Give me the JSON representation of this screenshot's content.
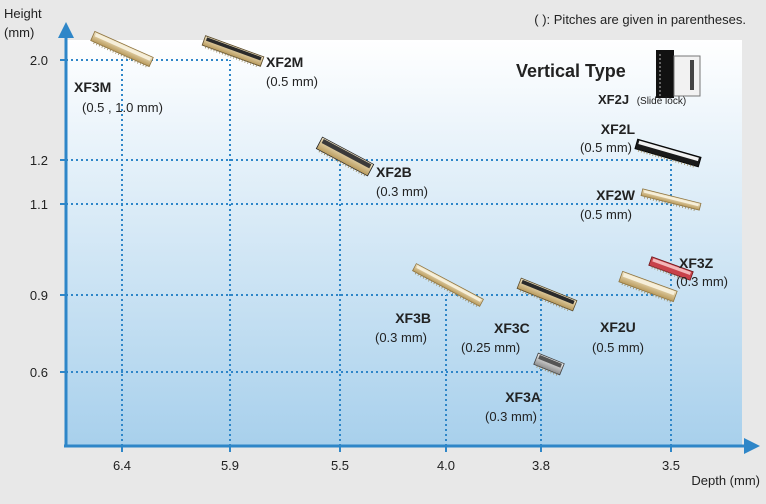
{
  "note": "( ): Pitches are given in parentheses.",
  "vertical_type": {
    "title": "Vertical Type",
    "name": "XF2J",
    "sub": "(Slide lock)"
  },
  "chart_data": {
    "type": "scatter",
    "xlabel": "Depth (mm)",
    "ylabel": [
      "Height",
      "(mm)"
    ],
    "x_ticks": [
      "6.4",
      "5.9",
      "5.5",
      "4.0",
      "3.8",
      "3.5"
    ],
    "y_ticks": [
      "2.0",
      "1.2",
      "1.1",
      "0.9",
      "0.6"
    ],
    "gridlines": "dotted",
    "points": [
      {
        "name": "XF3M",
        "pitch": "(0.5 , 1.0 mm)",
        "depth": "6.4",
        "height": "2.0",
        "style": "beige"
      },
      {
        "name": "XF2M",
        "pitch": "(0.5 mm)",
        "depth": "5.9",
        "height": "2.0",
        "style": "dark-top"
      },
      {
        "name": "XF2B",
        "pitch": "(0.3 mm)",
        "depth": "5.5",
        "height": "1.2",
        "style": "dark"
      },
      {
        "name": "XF2L",
        "pitch": "(0.5 mm)",
        "depth": "3.5",
        "height": "1.2",
        "style": "black"
      },
      {
        "name": "XF2W",
        "pitch": "(0.5 mm)",
        "depth": "3.5",
        "height": "1.1",
        "style": "beige"
      },
      {
        "name": "XF3Z",
        "pitch": "(0.3 mm)",
        "depth": "3.5",
        "height": "1.0",
        "style": "red"
      },
      {
        "name": "XF3B",
        "pitch": "(0.3 mm)",
        "depth": "4.0",
        "height": "0.9",
        "style": "beige"
      },
      {
        "name": "XF3C",
        "pitch": "(0.25 mm)",
        "depth": "3.8",
        "height": "0.9",
        "style": "dark-top"
      },
      {
        "name": "XF2U",
        "pitch": "(0.5 mm)",
        "depth": "3.5",
        "height": "0.9",
        "style": "beige"
      },
      {
        "name": "XF3A",
        "pitch": "(0.3 mm)",
        "depth": "3.8",
        "height": "0.6",
        "style": "gray"
      }
    ]
  }
}
